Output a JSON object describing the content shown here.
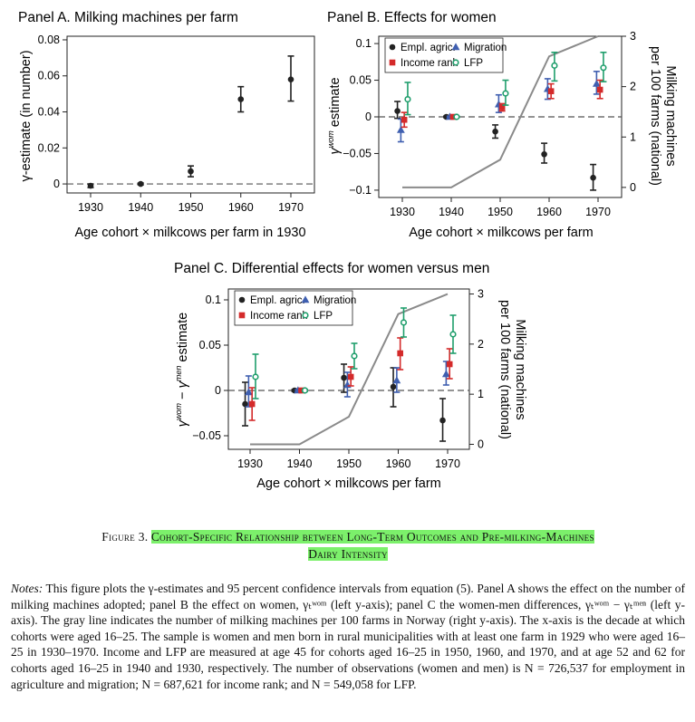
{
  "chart_data": [
    {
      "panel": "A",
      "type": "scatter",
      "title": "Panel A. Milking machines per farm",
      "xlabel": "Age cohort × milkcows per farm in 1930",
      "ylabel": "γ-estimate (in number)",
      "categories": [
        "1930",
        "1940",
        "1950",
        "1960",
        "1970"
      ],
      "ylim": [
        -0.005,
        0.082
      ],
      "yticks": [
        0,
        0.02,
        0.04,
        0.06,
        0.08
      ],
      "ytick_labels": [
        "0",
        "0.02",
        "0.04",
        "0.06",
        "0.08"
      ],
      "zero_line": "dashed",
      "series": [
        {
          "color": "#222222",
          "marker": "circle",
          "values": [
            -0.001,
            0.0,
            0.007,
            0.047,
            0.058
          ],
          "ci_low": [
            -0.002,
            -0.0005,
            0.004,
            0.04,
            0.046
          ],
          "ci_high": [
            0.0,
            0.0005,
            0.01,
            0.054,
            0.071
          ]
        }
      ]
    },
    {
      "panel": "B",
      "type": "scatter",
      "title": "Panel B. Effects for women",
      "xlabel": "Age cohort × milkcows per farm",
      "ylabel_main": "estimate",
      "ylabel_sym": "γ",
      "ylabel_sup": "wom",
      "y2label_line1": "Milking machines",
      "y2label_line2": "per 100 farms (national)",
      "categories": [
        "1930",
        "1940",
        "1950",
        "1960",
        "1970"
      ],
      "ylim": [
        -0.11,
        0.11
      ],
      "yticks": [
        -0.1,
        -0.05,
        0,
        0.05,
        0.1
      ],
      "ytick_labels": [
        "−0.1",
        "−0.05",
        "0",
        "0.05",
        "0.1"
      ],
      "y2lim": [
        -0.2,
        3.0
      ],
      "y2ticks": [
        0,
        1,
        2,
        3
      ],
      "y2tick_labels": [
        "0",
        "1",
        "2",
        "3"
      ],
      "zero_line": "dashed",
      "legend": {
        "position": "top-left",
        "columns": 2
      },
      "series": [
        {
          "name": "Empl. agric.",
          "color": "#222222",
          "marker": "circle",
          "offset": -0.1,
          "values": [
            0.008,
            0.0,
            -0.02,
            -0.051,
            -0.083
          ],
          "ci_low": [
            -0.002,
            -0.001,
            -0.029,
            -0.063,
            -0.1
          ],
          "ci_high": [
            0.021,
            0.001,
            -0.011,
            -0.036,
            -0.065
          ]
        },
        {
          "name": "Migration",
          "color": "#3f5fb0",
          "marker": "triangle",
          "offset": -0.03,
          "values": [
            -0.018,
            0.0,
            0.017,
            0.038,
            0.045
          ],
          "ci_low": [
            -0.034,
            -0.001,
            0.006,
            0.024,
            0.031
          ],
          "ci_high": [
            -0.003,
            0.001,
            0.03,
            0.052,
            0.062
          ]
        },
        {
          "name": "Income rank",
          "color": "#d42a2a",
          "marker": "square",
          "offset": 0.04,
          "values": [
            -0.004,
            0.0,
            0.013,
            0.035,
            0.037
          ],
          "ci_low": [
            -0.014,
            -0.001,
            0.008,
            0.025,
            0.025
          ],
          "ci_high": [
            0.006,
            0.001,
            0.018,
            0.045,
            0.05
          ]
        },
        {
          "name": "LFP",
          "color": "#1f9e6c",
          "marker": "open-circle",
          "offset": 0.11,
          "values": [
            0.024,
            0.0,
            0.032,
            0.07,
            0.067
          ],
          "ci_low": [
            0.003,
            -0.001,
            0.016,
            0.049,
            0.048
          ],
          "ci_high": [
            0.047,
            0.001,
            0.05,
            0.088,
            0.088
          ]
        }
      ],
      "line_machines": {
        "color": "#8a8a8a",
        "x": [
          1930,
          1940,
          1950,
          1960,
          1970
        ],
        "values": [
          0,
          0,
          0.55,
          2.6,
          3.0
        ]
      }
    },
    {
      "panel": "C",
      "type": "scatter",
      "title": "Panel C. Differential effects for women versus men",
      "xlabel": "Age cohort × milkcows per farm",
      "ylabel_main": "estimate",
      "ylabel_sym1": "γ",
      "ylabel_sup1": "wom",
      "ylabel_minus": "−",
      "ylabel_sym2": "γ",
      "ylabel_sup2": "men",
      "y2label_line1": "Milking machines",
      "y2label_line2": "per 100 farms (national)",
      "categories": [
        "1930",
        "1940",
        "1950",
        "1960",
        "1970"
      ],
      "ylim": [
        -0.065,
        0.112
      ],
      "yticks": [
        -0.05,
        0,
        0.05,
        0.1
      ],
      "ytick_labels": [
        "−0.05",
        "0",
        "0.05",
        "0.1"
      ],
      "y2lim": [
        -0.1,
        3.1
      ],
      "y2ticks": [
        0,
        1,
        2,
        3
      ],
      "y2tick_labels": [
        "0",
        "1",
        "2",
        "3"
      ],
      "zero_line": "dashed",
      "legend": {
        "position": "top-left",
        "columns": 2
      },
      "series": [
        {
          "name": "Empl. agric.",
          "color": "#222222",
          "marker": "circle",
          "offset": -0.1,
          "values": [
            -0.015,
            0.0,
            0.014,
            0.004,
            -0.033
          ],
          "ci_low": [
            -0.039,
            -0.001,
            -0.002,
            -0.018,
            -0.056
          ],
          "ci_high": [
            0.009,
            0.001,
            0.029,
            0.025,
            -0.009
          ]
        },
        {
          "name": "Migration",
          "color": "#3f5fb0",
          "marker": "triangle",
          "offset": -0.03,
          "values": [
            -0.002,
            0.0,
            0.006,
            0.011,
            0.018
          ],
          "ci_low": [
            -0.018,
            -0.001,
            -0.007,
            -0.002,
            0.006
          ],
          "ci_high": [
            0.016,
            0.001,
            0.02,
            0.025,
            0.032
          ]
        },
        {
          "name": "Income rank",
          "color": "#d42a2a",
          "marker": "square",
          "offset": 0.04,
          "values": [
            -0.015,
            0.0,
            0.015,
            0.041,
            0.029
          ],
          "ci_low": [
            -0.033,
            -0.001,
            0.005,
            0.023,
            0.013
          ],
          "ci_high": [
            0.003,
            0.001,
            0.026,
            0.058,
            0.046
          ]
        },
        {
          "name": "LFP",
          "color": "#1f9e6c",
          "marker": "open-circle",
          "offset": 0.11,
          "values": [
            0.015,
            0.0,
            0.038,
            0.075,
            0.062
          ],
          "ci_low": [
            -0.009,
            -0.001,
            0.024,
            0.059,
            0.041
          ],
          "ci_high": [
            0.04,
            0.001,
            0.052,
            0.091,
            0.083
          ]
        }
      ],
      "line_machines": {
        "color": "#8a8a8a",
        "x": [
          1930,
          1940,
          1950,
          1960,
          1970
        ],
        "values": [
          0,
          0,
          0.55,
          2.6,
          3.0
        ]
      }
    }
  ],
  "caption": {
    "figure_label": "Figure 3.",
    "title_line1": "Cohort-Specific Relationship between Long-Term Outcomes and Pre-milking-Machines",
    "title_line2": "Dairy Intensity"
  },
  "notes": {
    "label": "Notes:",
    "text": "This figure plots the γ-estimates and 95 percent confidence intervals from equation (5). Panel A shows the effect on the number of milking machines adopted; panel B the effect on women, γₜʷᵒᵐ (left y-axis); panel C the women-men differences, γₜʷᵒᵐ − γₜᵐᵉⁿ (left y-axis). The gray line indicates the number of milking machines per 100 farms in Norway (right y-axis). The x-axis is the decade at which cohorts were aged 16–25. The sample is women and men born in rural municipalities with at least one farm in 1929 who were aged 16–25 in 1930–1970. Income and LFP are measured at age 45 for cohorts aged 16–25 in 1950, 1960, and 1970, and at age 52 and 62 for cohorts aged 16–25 in 1940 and 1930, respectively. The number of observations (women and men) is N = 726,537 for employment in agriculture and migration; N = 687,621 for income rank; and N = 549,058 for LFP."
  }
}
